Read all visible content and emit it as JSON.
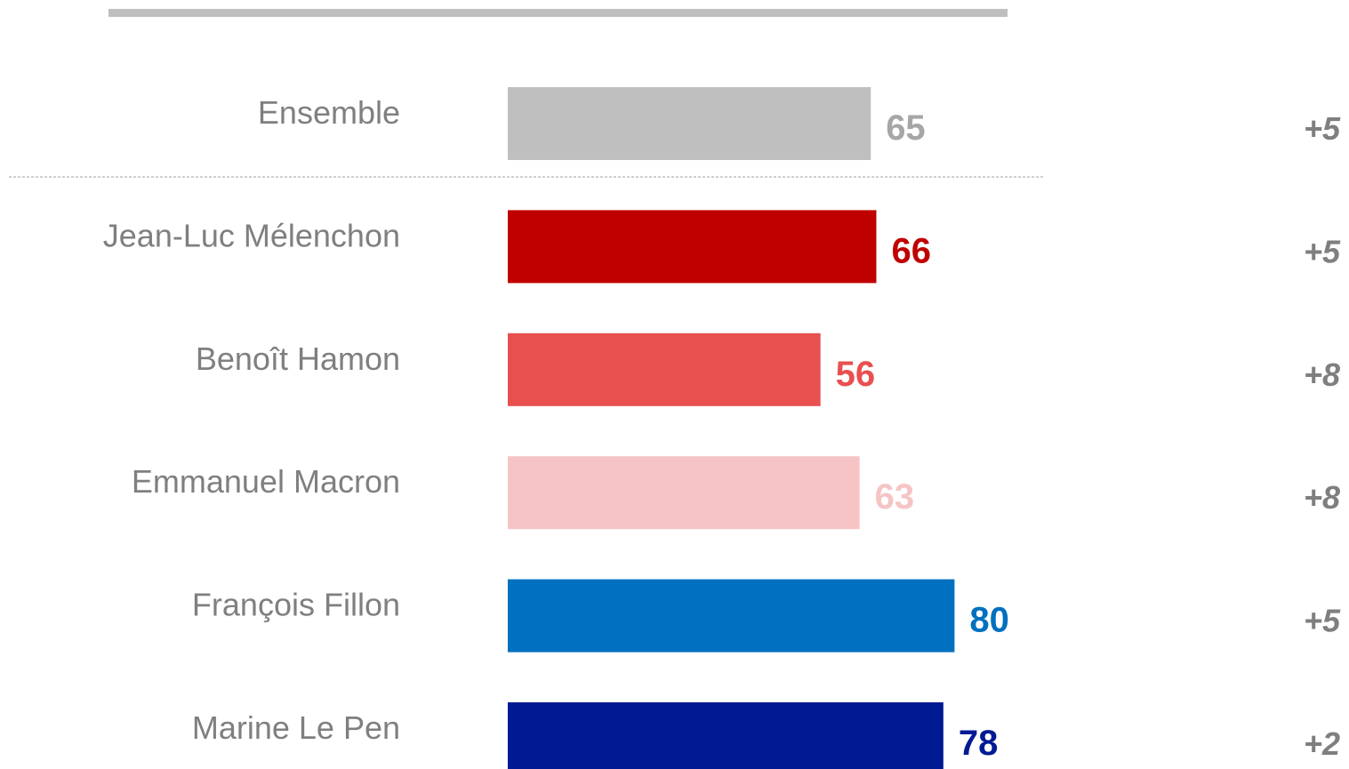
{
  "chart_data": {
    "type": "bar",
    "orientation": "horizontal",
    "categories": [
      "Ensemble",
      "Jean-Luc Mélenchon",
      "Benoît Hamon",
      "Emmanuel Macron",
      "François Fillon",
      "Marine Le Pen"
    ],
    "values": [
      65,
      66,
      56,
      63,
      80,
      78
    ],
    "changes": [
      "+5",
      "+5",
      "+8",
      "+8",
      "+5",
      "+2"
    ],
    "colors": [
      "#bfbfbf",
      "#c00000",
      "#e85050",
      "#f6c4c4",
      "#0070c0",
      "#001a94"
    ],
    "xlim": [
      0,
      100
    ],
    "title": "",
    "xlabel": "",
    "ylabel": "",
    "grid": false,
    "separator_after": "Ensemble"
  }
}
